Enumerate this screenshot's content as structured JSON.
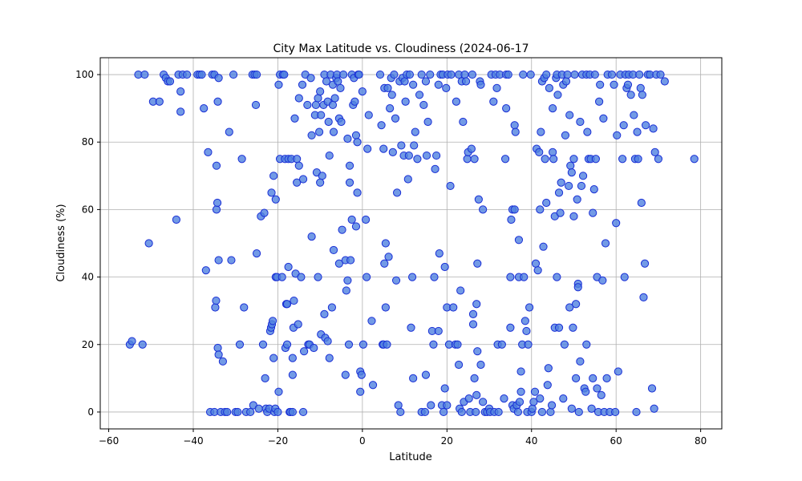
{
  "chart_data": {
    "type": "scatter",
    "title": "City Max Latitude vs. Cloudiness (2024-06-17",
    "xlabel": "Latitude",
    "ylabel": "Cloudiness (%)",
    "xlim": [
      -62,
      85
    ],
    "ylim": [
      -5,
      105
    ],
    "xticks": [
      -60,
      -40,
      -20,
      0,
      20,
      40,
      60,
      80
    ],
    "yticks": [
      0,
      20,
      40,
      60,
      80,
      100
    ],
    "grid": true,
    "marker_fill": "#4f81e0",
    "marker_edge": "#1a2fd6",
    "points": [
      [
        -55,
        20
      ],
      [
        -54.5,
        21
      ],
      [
        -53,
        100
      ],
      [
        -52,
        20
      ],
      [
        -51.5,
        100
      ],
      [
        -50.5,
        50
      ],
      [
        -49.5,
        92
      ],
      [
        -48,
        92
      ],
      [
        -47,
        100
      ],
      [
        -46.5,
        99
      ],
      [
        -46,
        98
      ],
      [
        -45.5,
        98
      ],
      [
        -44,
        57
      ],
      [
        -43.5,
        100
      ],
      [
        -43,
        95
      ],
      [
        -43,
        89
      ],
      [
        -42.5,
        100
      ],
      [
        -41.5,
        100
      ],
      [
        -39,
        100
      ],
      [
        -38.5,
        100
      ],
      [
        -38,
        100
      ],
      [
        -37.5,
        90
      ],
      [
        -37,
        42
      ],
      [
        -36.5,
        77
      ],
      [
        -36,
        0
      ],
      [
        -35.5,
        100
      ],
      [
        -35,
        0
      ],
      [
        -35,
        100
      ],
      [
        -34.8,
        31
      ],
      [
        -34.6,
        33
      ],
      [
        -34.5,
        60
      ],
      [
        -34.5,
        73
      ],
      [
        -34.3,
        62
      ],
      [
        -34.2,
        92
      ],
      [
        -34.2,
        19
      ],
      [
        -34,
        17
      ],
      [
        -34,
        45
      ],
      [
        -34,
        99
      ],
      [
        -33.5,
        0
      ],
      [
        -33,
        15
      ],
      [
        -32.5,
        0
      ],
      [
        -32,
        0
      ],
      [
        -31.5,
        83
      ],
      [
        -31,
        45
      ],
      [
        -30.5,
        100
      ],
      [
        -30,
        0
      ],
      [
        -29.5,
        0
      ],
      [
        -29,
        20
      ],
      [
        -28.5,
        75
      ],
      [
        -28,
        31
      ],
      [
        -27.5,
        0
      ],
      [
        -26.5,
        0
      ],
      [
        -26,
        100
      ],
      [
        -25.8,
        2
      ],
      [
        -25.5,
        100
      ],
      [
        -25.2,
        91
      ],
      [
        -25,
        100
      ],
      [
        -25,
        47
      ],
      [
        -24.5,
        1
      ],
      [
        -24,
        58
      ],
      [
        -23.5,
        20
      ],
      [
        -23.2,
        59
      ],
      [
        -23,
        10
      ],
      [
        -22.8,
        1
      ],
      [
        -22.5,
        0
      ],
      [
        -22,
        1
      ],
      [
        -21.8,
        24
      ],
      [
        -21.6,
        25
      ],
      [
        -21.5,
        65
      ],
      [
        -21.4,
        26
      ],
      [
        -21.2,
        27
      ],
      [
        -21,
        16
      ],
      [
        -21,
        70
      ],
      [
        -20.8,
        0
      ],
      [
        -20.6,
        1
      ],
      [
        -20.5,
        40
      ],
      [
        -20.5,
        63
      ],
      [
        -20.2,
        40
      ],
      [
        -20,
        0
      ],
      [
        -19.8,
        97
      ],
      [
        -19.8,
        6
      ],
      [
        -19.5,
        75
      ],
      [
        -19.5,
        100
      ],
      [
        -19,
        40
      ],
      [
        -18.8,
        100
      ],
      [
        -18.5,
        100
      ],
      [
        -18.3,
        75
      ],
      [
        -18.2,
        19
      ],
      [
        -18,
        32
      ],
      [
        -17.8,
        20
      ],
      [
        -17.8,
        32
      ],
      [
        -17.5,
        43
      ],
      [
        -17.5,
        75
      ],
      [
        -17.2,
        0
      ],
      [
        -17,
        0
      ],
      [
        -16.8,
        75
      ],
      [
        -16.5,
        0
      ],
      [
        -16.5,
        11
      ],
      [
        -16.5,
        16
      ],
      [
        -16.3,
        25
      ],
      [
        -16.2,
        33
      ],
      [
        -16,
        87
      ],
      [
        -15.8,
        41
      ],
      [
        -15.5,
        68
      ],
      [
        -15.5,
        75
      ],
      [
        -15.2,
        26
      ],
      [
        -15,
        93
      ],
      [
        -15,
        73
      ],
      [
        -14.5,
        40
      ],
      [
        -14.2,
        97
      ],
      [
        -14,
        0
      ],
      [
        -14,
        69
      ],
      [
        -13.8,
        18
      ],
      [
        -13.5,
        100
      ],
      [
        -13,
        91
      ],
      [
        -12.8,
        20
      ],
      [
        -12.5,
        20
      ],
      [
        -12.2,
        99
      ],
      [
        -12,
        52
      ],
      [
        -12,
        82
      ],
      [
        -11.5,
        19
      ],
      [
        -11.2,
        88
      ],
      [
        -11,
        91
      ],
      [
        -10.8,
        71
      ],
      [
        -10.5,
        40
      ],
      [
        -10.5,
        93
      ],
      [
        -10.2,
        83
      ],
      [
        -10,
        95
      ],
      [
        -10,
        68
      ],
      [
        -9.8,
        88
      ],
      [
        -9.8,
        23
      ],
      [
        -9.5,
        70
      ],
      [
        -9.2,
        91
      ],
      [
        -9,
        29
      ],
      [
        -9,
        100
      ],
      [
        -8.8,
        22
      ],
      [
        -8.5,
        98
      ],
      [
        -8.2,
        92
      ],
      [
        -8.2,
        21
      ],
      [
        -8,
        86
      ],
      [
        -7.8,
        76
      ],
      [
        -7.8,
        16
      ],
      [
        -7.5,
        100
      ],
      [
        -7.2,
        31
      ],
      [
        -7,
        97
      ],
      [
        -7,
        91
      ],
      [
        -6.8,
        48
      ],
      [
        -6.8,
        83
      ],
      [
        -6.5,
        93
      ],
      [
        -6.2,
        99
      ],
      [
        -6,
        100
      ],
      [
        -5.8,
        98
      ],
      [
        -5.5,
        44
      ],
      [
        -5.5,
        87
      ],
      [
        -5.2,
        96
      ],
      [
        -5,
        86
      ],
      [
        -4.8,
        54
      ],
      [
        -4.5,
        100
      ],
      [
        -4,
        11
      ],
      [
        -4,
        45
      ],
      [
        -3.8,
        36
      ],
      [
        -3.5,
        81
      ],
      [
        -3.5,
        39
      ],
      [
        -3.2,
        20
      ],
      [
        -3,
        68
      ],
      [
        -3,
        73
      ],
      [
        -2.8,
        45
      ],
      [
        -2.5,
        57
      ],
      [
        -2.5,
        100
      ],
      [
        -2.2,
        91
      ],
      [
        -2,
        99
      ],
      [
        -1.8,
        92
      ],
      [
        -1.5,
        82
      ],
      [
        -1.5,
        55
      ],
      [
        -1.2,
        65
      ],
      [
        -1.2,
        80
      ],
      [
        -1,
        100
      ],
      [
        -0.8,
        100
      ],
      [
        -0.5,
        12
      ],
      [
        -0.5,
        6
      ],
      [
        -0.2,
        11
      ],
      [
        0,
        95
      ],
      [
        0.2,
        20
      ],
      [
        0.8,
        57
      ],
      [
        1,
        40
      ],
      [
        1.2,
        78
      ],
      [
        1.5,
        88
      ],
      [
        2.2,
        27
      ],
      [
        2.5,
        8
      ],
      [
        4.2,
        100
      ],
      [
        4.5,
        85
      ],
      [
        4.8,
        20
      ],
      [
        5,
        78
      ],
      [
        5,
        20
      ],
      [
        5.2,
        96
      ],
      [
        5.2,
        44
      ],
      [
        5.5,
        50
      ],
      [
        5.5,
        31
      ],
      [
        5.8,
        20
      ],
      [
        6,
        96
      ],
      [
        6.2,
        46
      ],
      [
        6.5,
        90
      ],
      [
        6.8,
        99
      ],
      [
        7,
        94
      ],
      [
        7.2,
        77
      ],
      [
        7.5,
        100
      ],
      [
        7.8,
        87
      ],
      [
        8,
        39
      ],
      [
        8.2,
        65
      ],
      [
        8.5,
        2
      ],
      [
        8.8,
        98
      ],
      [
        9,
        0
      ],
      [
        9.2,
        79
      ],
      [
        9.5,
        99
      ],
      [
        9.8,
        76
      ],
      [
        10,
        98
      ],
      [
        10.2,
        92
      ],
      [
        10.5,
        100
      ],
      [
        10.8,
        69
      ],
      [
        11,
        76
      ],
      [
        11.2,
        100
      ],
      [
        11.5,
        25
      ],
      [
        11.8,
        40
      ],
      [
        12,
        97
      ],
      [
        12,
        10
      ],
      [
        12.2,
        79
      ],
      [
        12.5,
        83
      ],
      [
        13,
        75
      ],
      [
        13.5,
        94
      ],
      [
        14,
        0
      ],
      [
        14,
        100
      ],
      [
        14.5,
        91
      ],
      [
        14.8,
        0
      ],
      [
        15,
        11
      ],
      [
        15,
        98
      ],
      [
        15.2,
        76
      ],
      [
        15.5,
        86
      ],
      [
        16,
        100
      ],
      [
        16.2,
        2
      ],
      [
        16.5,
        24
      ],
      [
        16.8,
        20
      ],
      [
        17,
        40
      ],
      [
        17.2,
        72
      ],
      [
        17.5,
        76
      ],
      [
        18,
        97
      ],
      [
        18,
        24
      ],
      [
        18.2,
        47
      ],
      [
        18.5,
        100
      ],
      [
        18.8,
        2
      ],
      [
        19,
        100
      ],
      [
        19.2,
        0
      ],
      [
        19.5,
        43
      ],
      [
        19.5,
        7
      ],
      [
        19.8,
        96
      ],
      [
        20,
        31
      ],
      [
        20,
        2
      ],
      [
        20.2,
        100
      ],
      [
        20.5,
        20
      ],
      [
        20.8,
        67
      ],
      [
        21,
        100
      ],
      [
        21.5,
        31
      ],
      [
        22,
        20
      ],
      [
        22.2,
        92
      ],
      [
        22.5,
        20
      ],
      [
        22.8,
        100
      ],
      [
        22.8,
        14
      ],
      [
        23,
        1
      ],
      [
        23.2,
        36
      ],
      [
        23.5,
        98
      ],
      [
        23.5,
        0
      ],
      [
        23.8,
        86
      ],
      [
        24,
        3
      ],
      [
        24.2,
        100
      ],
      [
        24.5,
        98
      ],
      [
        24.8,
        75
      ],
      [
        25,
        77
      ],
      [
        25.2,
        4
      ],
      [
        25.5,
        0
      ],
      [
        25.8,
        78
      ],
      [
        26,
        100
      ],
      [
        26.2,
        26
      ],
      [
        26.2,
        29
      ],
      [
        26.5,
        75
      ],
      [
        26.5,
        10
      ],
      [
        26.8,
        0
      ],
      [
        27,
        5
      ],
      [
        27,
        32
      ],
      [
        27.2,
        44
      ],
      [
        27.2,
        18
      ],
      [
        27.5,
        63
      ],
      [
        27.8,
        98
      ],
      [
        28,
        97
      ],
      [
        28,
        14
      ],
      [
        28.5,
        60
      ],
      [
        28.5,
        3
      ],
      [
        29,
        0
      ],
      [
        29.5,
        0
      ],
      [
        30,
        1
      ],
      [
        30.2,
        0
      ],
      [
        30.5,
        100
      ],
      [
        31,
        92
      ],
      [
        31.2,
        0
      ],
      [
        31.5,
        100
      ],
      [
        31.8,
        96
      ],
      [
        32,
        20
      ],
      [
        32.2,
        0
      ],
      [
        32.5,
        100
      ],
      [
        33,
        20
      ],
      [
        33.5,
        4
      ],
      [
        33.8,
        75
      ],
      [
        34,
        90
      ],
      [
        34,
        100
      ],
      [
        34.5,
        100
      ],
      [
        35,
        40
      ],
      [
        35,
        25
      ],
      [
        35.2,
        57
      ],
      [
        35.5,
        2
      ],
      [
        35.5,
        60
      ],
      [
        35.8,
        1
      ],
      [
        36,
        85
      ],
      [
        36,
        60
      ],
      [
        36.2,
        83
      ],
      [
        36.5,
        2
      ],
      [
        36.8,
        0
      ],
      [
        37,
        40
      ],
      [
        37,
        51
      ],
      [
        37.2,
        3
      ],
      [
        37.5,
        12
      ],
      [
        37.5,
        6
      ],
      [
        37.8,
        20
      ],
      [
        38,
        100
      ],
      [
        38.2,
        40
      ],
      [
        38.5,
        27
      ],
      [
        38.8,
        24
      ],
      [
        39,
        0
      ],
      [
        39.2,
        20
      ],
      [
        39.5,
        31
      ],
      [
        39.8,
        100
      ],
      [
        40,
        0
      ],
      [
        40.2,
        1
      ],
      [
        40.5,
        3
      ],
      [
        40.8,
        6
      ],
      [
        41,
        44
      ],
      [
        41.2,
        78
      ],
      [
        41.5,
        42
      ],
      [
        41.8,
        77
      ],
      [
        42,
        60
      ],
      [
        42,
        4
      ],
      [
        42.2,
        83
      ],
      [
        42.5,
        98
      ],
      [
        42.5,
        0
      ],
      [
        42.8,
        49
      ],
      [
        43,
        99
      ],
      [
        43.2,
        75
      ],
      [
        43.5,
        100
      ],
      [
        43.5,
        62
      ],
      [
        43.8,
        8
      ],
      [
        44,
        13
      ],
      [
        44.2,
        96
      ],
      [
        44.5,
        0
      ],
      [
        44.8,
        2
      ],
      [
        45,
        90
      ],
      [
        45,
        77
      ],
      [
        45.2,
        75
      ],
      [
        45.5,
        58
      ],
      [
        45.5,
        25
      ],
      [
        45.8,
        99
      ],
      [
        46,
        100
      ],
      [
        46,
        40
      ],
      [
        46.2,
        94
      ],
      [
        46.5,
        65
      ],
      [
        46.5,
        25
      ],
      [
        46.8,
        59
      ],
      [
        47,
        68
      ],
      [
        47.2,
        100
      ],
      [
        47.5,
        97
      ],
      [
        47.5,
        4
      ],
      [
        47.8,
        20
      ],
      [
        48,
        82
      ],
      [
        48.2,
        98
      ],
      [
        48.5,
        100
      ],
      [
        48.8,
        67
      ],
      [
        49,
        31
      ],
      [
        49,
        88
      ],
      [
        49.2,
        73
      ],
      [
        49.5,
        71
      ],
      [
        49.5,
        1
      ],
      [
        49.8,
        25
      ],
      [
        50,
        75
      ],
      [
        50,
        58
      ],
      [
        50.2,
        100
      ],
      [
        50.5,
        32
      ],
      [
        50.5,
        10
      ],
      [
        50.8,
        63
      ],
      [
        51,
        38
      ],
      [
        51,
        37
      ],
      [
        51.2,
        0
      ],
      [
        51.5,
        86
      ],
      [
        51.5,
        15
      ],
      [
        51.8,
        67
      ],
      [
        52,
        100
      ],
      [
        52.2,
        70
      ],
      [
        52.5,
        7
      ],
      [
        52.8,
        6
      ],
      [
        53,
        20
      ],
      [
        53,
        100
      ],
      [
        53.2,
        83
      ],
      [
        53.5,
        75
      ],
      [
        53.8,
        100
      ],
      [
        54,
        75
      ],
      [
        54.2,
        1
      ],
      [
        54.5,
        59
      ],
      [
        54.5,
        10
      ],
      [
        54.8,
        66
      ],
      [
        55,
        100
      ],
      [
        55.2,
        75
      ],
      [
        55.5,
        40
      ],
      [
        55.5,
        7
      ],
      [
        55.8,
        0
      ],
      [
        56,
        92
      ],
      [
        56.2,
        97
      ],
      [
        56.5,
        5
      ],
      [
        56.8,
        39
      ],
      [
        57,
        87
      ],
      [
        57.2,
        0
      ],
      [
        57.5,
        50
      ],
      [
        57.8,
        10
      ],
      [
        58,
        100
      ],
      [
        58.5,
        0
      ],
      [
        59,
        100
      ],
      [
        59.5,
        97
      ],
      [
        59.8,
        0
      ],
      [
        60,
        56
      ],
      [
        60.2,
        82
      ],
      [
        60.5,
        12
      ],
      [
        61,
        100
      ],
      [
        61.5,
        75
      ],
      [
        61.8,
        85
      ],
      [
        62,
        40
      ],
      [
        62.2,
        100
      ],
      [
        62.5,
        96
      ],
      [
        62.8,
        97
      ],
      [
        63,
        100
      ],
      [
        63.5,
        94
      ],
      [
        64,
        100
      ],
      [
        64.2,
        88
      ],
      [
        64.5,
        75
      ],
      [
        64.8,
        0
      ],
      [
        65,
        83
      ],
      [
        65.2,
        75
      ],
      [
        65.5,
        100
      ],
      [
        65.8,
        96
      ],
      [
        66,
        62
      ],
      [
        66.2,
        94
      ],
      [
        66.5,
        34
      ],
      [
        66.8,
        44
      ],
      [
        67,
        85
      ],
      [
        67.5,
        100
      ],
      [
        68,
        100
      ],
      [
        68.5,
        7
      ],
      [
        68.8,
        84
      ],
      [
        69,
        1
      ],
      [
        69.2,
        77
      ],
      [
        69.5,
        100
      ],
      [
        70,
        75
      ],
      [
        70.5,
        100
      ],
      [
        71.5,
        98
      ],
      [
        78.5,
        75
      ]
    ]
  }
}
